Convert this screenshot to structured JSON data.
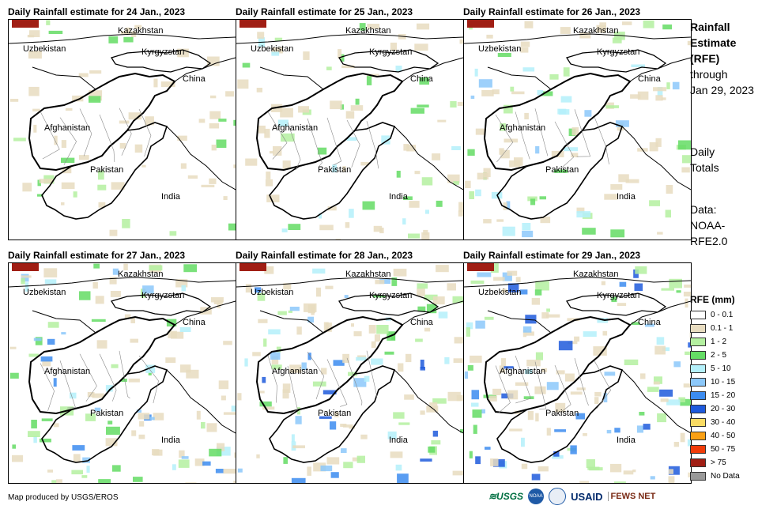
{
  "panels": [
    {
      "title": "Daily Rainfall estimate for 24 Jan., 2023",
      "labels": {
        "kazakhstan": "Kazakhstan",
        "uzbekistan": "Uzbekistan",
        "kyrgyzstan": "Kyrgyzstan",
        "china": "China",
        "afghanistan": "Afghanistan",
        "pakistan": "Pakistan",
        "india": "India"
      }
    },
    {
      "title": "Daily Rainfall estimate for 25 Jan., 2023",
      "labels": {
        "kazakhstan": "Kazakhstan",
        "uzbekistan": "Uzbekistan",
        "kyrgyzstan": "Kyrgyzstan",
        "china": "China",
        "afghanistan": "Afghanistan",
        "pakistan": "Pakistan",
        "india": "India"
      }
    },
    {
      "title": "Daily Rainfall estimate for 26 Jan., 2023",
      "labels": {
        "kazakhstan": "Kazakhstan",
        "uzbekistan": "Uzbekistan",
        "kyrgyzstan": "Kyrgyzstan",
        "china": "China",
        "afghanistan": "Afghanistan",
        "pakistan": "Pakistan",
        "india": "India"
      }
    },
    {
      "title": "Daily Rainfall estimate for 27 Jan., 2023",
      "labels": {
        "kazakhstan": "Kazakhstan",
        "uzbekistan": "Uzbekistan",
        "kyrgyzstan": "Kyrgyzstan",
        "china": "China",
        "afghanistan": "Afghanistan",
        "pakistan": "Pakistan",
        "india": "India"
      }
    },
    {
      "title": "Daily Rainfall estimate for 28 Jan., 2023",
      "labels": {
        "kazakhstan": "Kazakhstan",
        "uzbekistan": "Uzbekistan",
        "kyrgyzstan": "Kyrgyzstan",
        "china": "China",
        "afghanistan": "Afghanistan",
        "pakistan": "Pakistan",
        "india": "India"
      }
    },
    {
      "title": "Daily Rainfall estimate for 29 Jan., 2023",
      "labels": {
        "kazakhstan": "Kazakhstan",
        "uzbekistan": "Uzbekistan",
        "kyrgyzstan": "Kyrgyzstan",
        "china": "China",
        "afghanistan": "Afghanistan",
        "pakistan": "Pakistan",
        "india": "India"
      }
    }
  ],
  "side": {
    "title_line1": "Rainfall",
    "title_line2": "Estimate",
    "title_line3": "(RFE)",
    "through": "through",
    "date": "Jan 29, 2023",
    "daily_line1": "Daily",
    "daily_line2": "Totals",
    "data_line1": "Data:",
    "data_line2": "NOAA-",
    "data_line3": "RFE2.0"
  },
  "legend": {
    "title": "RFE (mm)",
    "items": [
      {
        "label": "0 - 0.1",
        "color": "#ffffff"
      },
      {
        "label": "0.1 - 1",
        "color": "#e8dcc0"
      },
      {
        "label": "1 - 2",
        "color": "#b4f0a0"
      },
      {
        "label": "2 - 5",
        "color": "#64dc64"
      },
      {
        "label": "5 - 10",
        "color": "#b4f0fa"
      },
      {
        "label": "10 - 15",
        "color": "#8cc8fa"
      },
      {
        "label": "15 - 20",
        "color": "#3c8cf0"
      },
      {
        "label": "20 - 30",
        "color": "#1e5adc"
      },
      {
        "label": "30 - 40",
        "color": "#fadc64"
      },
      {
        "label": "40 - 50",
        "color": "#faa014"
      },
      {
        "label": "50 - 75",
        "color": "#f03c0a"
      },
      {
        "label": "> 75",
        "color": "#a01e14"
      },
      {
        "label": "No Data",
        "color": "#999999"
      }
    ]
  },
  "footer": {
    "credit": "Map produced by USGS/EROS",
    "logo_usgs": "≋USGS",
    "logo_noaa": "NOAA",
    "logo_usaid": "USAID",
    "logo_fews": "FEWS NET"
  }
}
